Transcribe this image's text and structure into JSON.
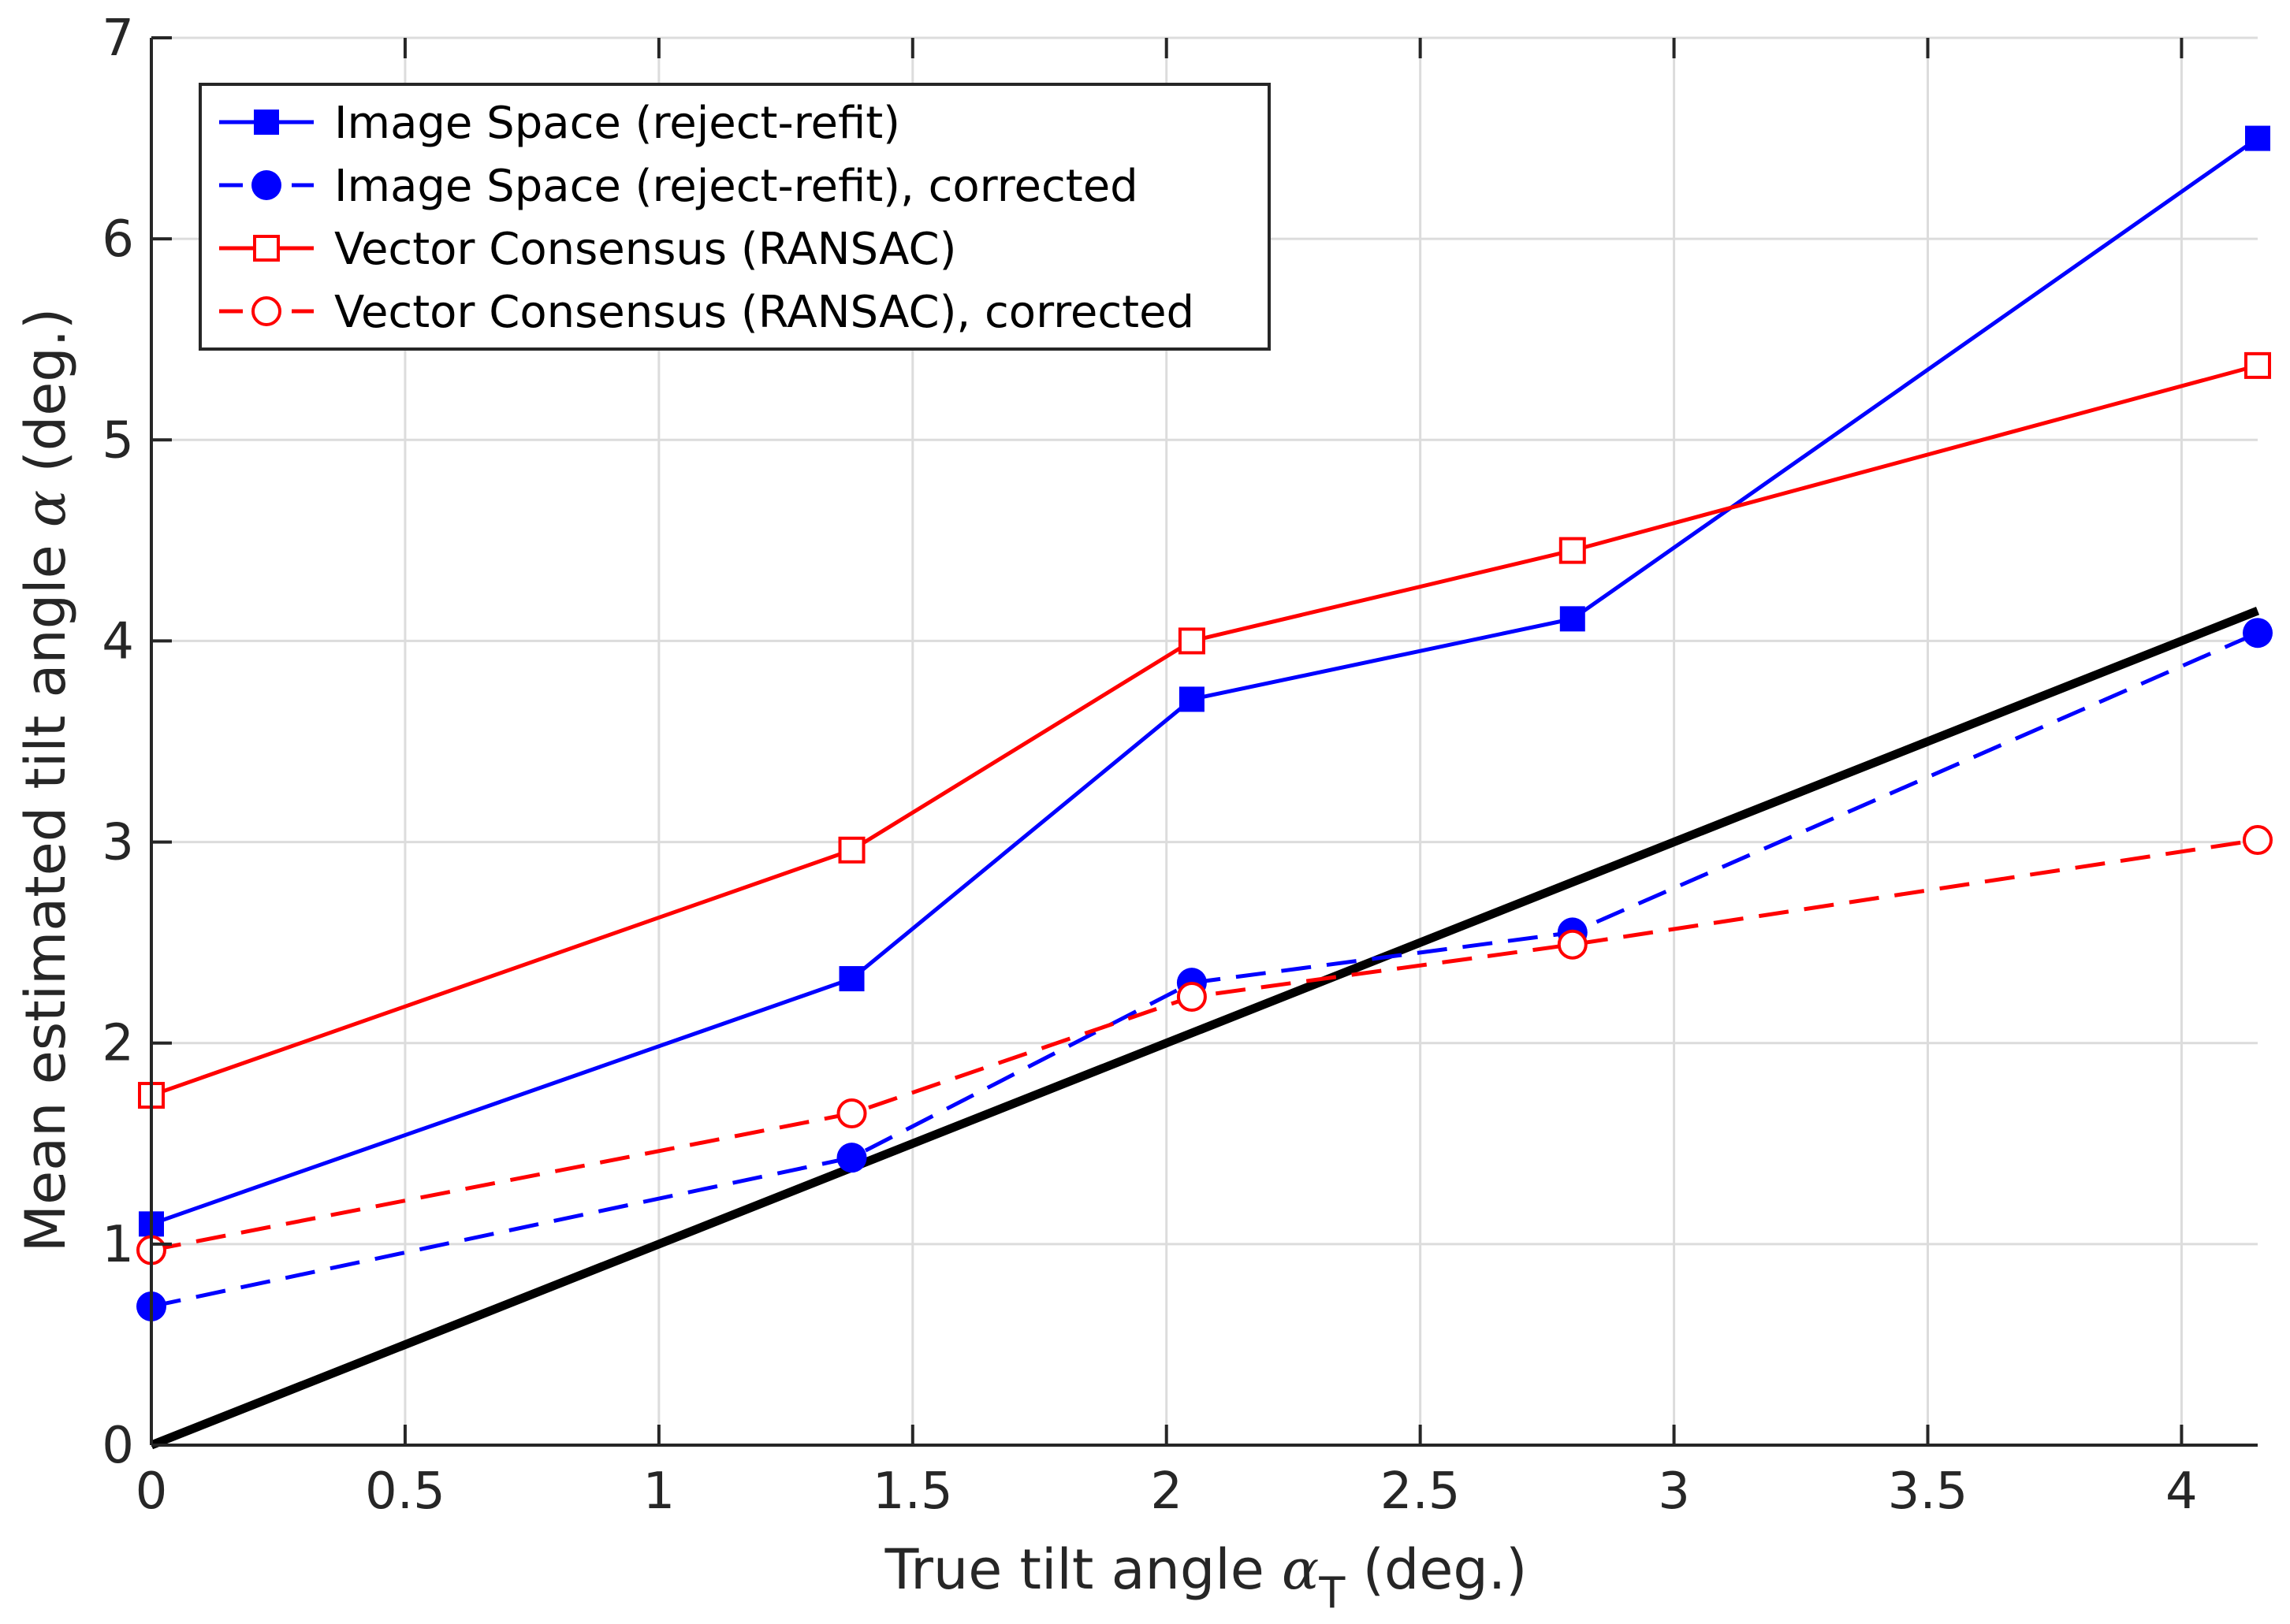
{
  "chart_data": {
    "type": "line",
    "title": "",
    "xlabel_text": "True tilt angle",
    "xlabel_symbol": "α",
    "xlabel_subscript": "T",
    "xlabel_unit": "(deg.)",
    "ylabel_text": "Mean estimated tilt angle",
    "ylabel_symbol": "α",
    "ylabel_unit": "(deg.)",
    "xlim": [
      0,
      4.15
    ],
    "ylim": [
      0,
      7
    ],
    "xticks": [
      0,
      0.5,
      1,
      1.5,
      2,
      2.5,
      3,
      3.5,
      4
    ],
    "xtick_labels": [
      "0",
      "0.5",
      "1",
      "1.5",
      "2",
      "2.5",
      "3",
      "3.5",
      "4"
    ],
    "yticks": [
      0,
      1,
      2,
      3,
      4,
      5,
      6,
      7
    ],
    "ytick_labels": [
      "0",
      "1",
      "2",
      "3",
      "4",
      "5",
      "6",
      "7"
    ],
    "grid": true,
    "legend_position": "top-left",
    "x": [
      0,
      1.38,
      2.05,
      2.8,
      4.15
    ],
    "series": [
      {
        "name": "Image Space (reject-refit)",
        "color": "#0000ff",
        "dash": "solid",
        "marker": "square-filled",
        "values": [
          1.1,
          2.32,
          3.71,
          4.11,
          6.5
        ]
      },
      {
        "name": "Image Space (reject-refit), corrected",
        "color": "#0000ff",
        "dash": "dashed",
        "marker": "circle-filled",
        "values": [
          0.69,
          1.43,
          2.3,
          2.55,
          4.04
        ]
      },
      {
        "name": "Vector Consensus (RANSAC)",
        "color": "#ff0000",
        "dash": "solid",
        "marker": "square-open",
        "values": [
          1.74,
          2.96,
          4.0,
          4.45,
          5.37
        ]
      },
      {
        "name": "Vector Consensus (RANSAC), corrected",
        "color": "#ff0000",
        "dash": "dashed",
        "marker": "circle-open",
        "values": [
          0.97,
          1.65,
          2.23,
          2.49,
          3.01
        ]
      }
    ],
    "reference_line": {
      "name": "y = x",
      "color": "#000000",
      "x": [
        0,
        4.15
      ],
      "y": [
        0,
        4.15
      ]
    }
  }
}
